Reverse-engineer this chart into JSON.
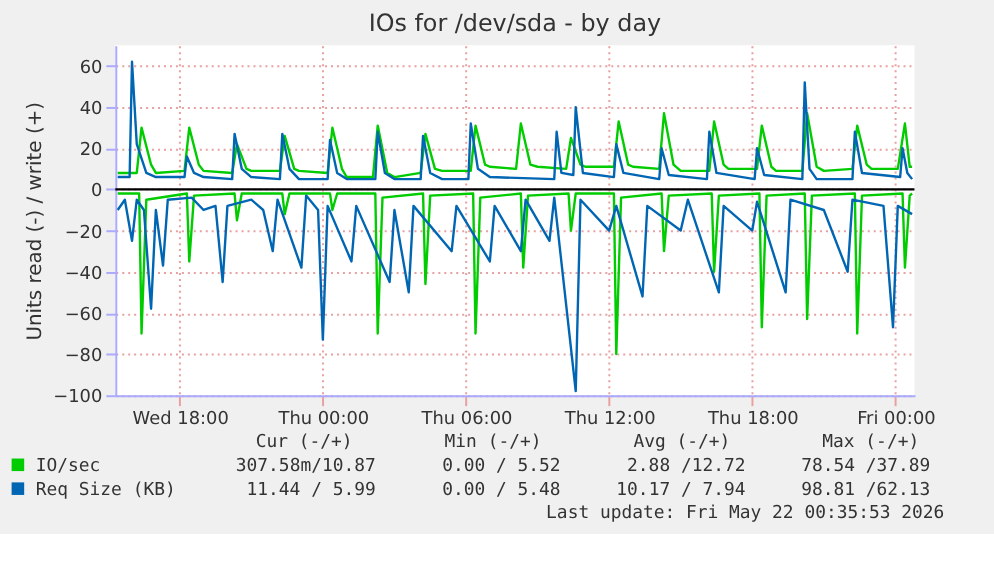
{
  "chart_data": {
    "type": "line",
    "title": "IOs for /dev/sda - by day",
    "ylabel": "Units read (-) / write (+)",
    "xlim": [
      "2026-05-20T15:18",
      "2026-05-22T00:48"
    ],
    "ylim": [
      -100,
      70
    ],
    "xticks": [
      {
        "value": "2026-05-20T18:00",
        "label": "Wed 18:00"
      },
      {
        "value": "2026-05-21T00:00",
        "label": "Thu 00:00"
      },
      {
        "value": "2026-05-21T06:00",
        "label": "Thu 06:00"
      },
      {
        "value": "2026-05-21T12:00",
        "label": "Thu 12:00"
      },
      {
        "value": "2026-05-21T18:00",
        "label": "Thu 18:00"
      },
      {
        "value": "2026-05-22T00:00",
        "label": "Fri 00:00"
      }
    ],
    "yticks": [
      -100,
      -80,
      -60,
      -40,
      -20,
      0,
      20,
      40,
      60
    ],
    "grid": true,
    "legend": "bottom",
    "marker": "none",
    "line_style": "solid",
    "ref_lines": [
      {
        "axis": "y",
        "value": 0,
        "color": "#000000"
      }
    ],
    "series": [
      {
        "name": "IO/sec",
        "color": "#00cc00",
        "x": [
          "2026-05-20T15:24",
          "2026-05-20T16:12",
          "2026-05-20T16:24",
          "2026-05-20T16:48",
          "2026-05-20T17:00",
          "2026-05-20T18:12",
          "2026-05-20T18:24",
          "2026-05-20T18:48",
          "2026-05-20T19:00",
          "2026-05-20T20:12",
          "2026-05-20T20:24",
          "2026-05-20T20:48",
          "2026-05-20T21:00",
          "2026-05-20T22:12",
          "2026-05-20T22:24",
          "2026-05-20T22:48",
          "2026-05-20T23:00",
          "2026-05-21T00:12",
          "2026-05-21T00:24",
          "2026-05-21T00:48",
          "2026-05-21T01:00",
          "2026-05-21T02:06",
          "2026-05-21T02:18",
          "2026-05-21T02:42",
          "2026-05-21T03:00",
          "2026-05-21T04:06",
          "2026-05-21T04:18",
          "2026-05-21T04:42",
          "2026-05-21T05:00",
          "2026-05-21T06:12",
          "2026-05-21T06:24",
          "2026-05-21T06:48",
          "2026-05-21T07:00",
          "2026-05-21T08:06",
          "2026-05-21T08:18",
          "2026-05-21T08:42",
          "2026-05-21T09:00",
          "2026-05-21T10:12",
          "2026-05-21T10:24",
          "2026-05-21T10:48",
          "2026-05-21T11:00",
          "2026-05-21T12:12",
          "2026-05-21T12:24",
          "2026-05-21T12:48",
          "2026-05-21T13:00",
          "2026-05-21T14:06",
          "2026-05-21T14:18",
          "2026-05-21T14:42",
          "2026-05-21T15:00",
          "2026-05-21T16:12",
          "2026-05-21T16:24",
          "2026-05-21T16:48",
          "2026-05-21T17:00",
          "2026-05-21T18:12",
          "2026-05-21T18:24",
          "2026-05-21T18:48",
          "2026-05-21T19:00",
          "2026-05-21T20:06",
          "2026-05-21T20:18",
          "2026-05-21T20:42",
          "2026-05-21T21:00",
          "2026-05-21T22:12",
          "2026-05-21T22:24",
          "2026-05-21T22:48",
          "2026-05-21T23:00",
          "2026-05-22T00:06",
          "2026-05-22T00:24",
          "2026-05-22T00:36",
          "2026-05-22T00:42"
        ],
        "values": [
          8,
          8,
          30,
          12,
          8,
          9,
          30,
          12,
          9,
          8,
          22,
          10,
          9,
          9,
          26,
          10,
          9,
          8,
          30,
          10,
          6,
          6,
          31,
          8,
          6,
          8,
          27,
          10,
          9,
          9,
          31,
          12,
          11,
          10,
          32,
          12,
          11,
          10,
          25,
          12,
          11,
          11,
          33,
          12,
          11,
          10,
          37,
          12,
          9,
          9,
          33,
          12,
          10,
          10,
          31,
          11,
          9,
          9,
          37,
          11,
          9,
          10,
          31,
          12,
          10,
          10,
          32,
          11,
          11
        ]
      },
      {
        "color": "#00cc00",
        "x": [
          "2026-05-20T15:24",
          "2026-05-20T16:18",
          "2026-05-20T16:24",
          "2026-05-20T16:36",
          "2026-05-20T18:18",
          "2026-05-20T18:24",
          "2026-05-20T18:36",
          "2026-05-20T20:18",
          "2026-05-20T20:24",
          "2026-05-20T20:36",
          "2026-05-20T22:18",
          "2026-05-20T22:24",
          "2026-05-20T22:36",
          "2026-05-21T00:18",
          "2026-05-21T00:24",
          "2026-05-21T00:36",
          "2026-05-21T02:12",
          "2026-05-21T02:18",
          "2026-05-21T02:30",
          "2026-05-21T04:12",
          "2026-05-21T04:18",
          "2026-05-21T04:30",
          "2026-05-21T06:18",
          "2026-05-21T06:24",
          "2026-05-21T06:36",
          "2026-05-21T08:18",
          "2026-05-21T08:24",
          "2026-05-21T08:36",
          "2026-05-21T10:18",
          "2026-05-21T10:24",
          "2026-05-21T10:36",
          "2026-05-21T12:12",
          "2026-05-21T12:18",
          "2026-05-21T12:30",
          "2026-05-21T14:12",
          "2026-05-21T14:18",
          "2026-05-21T14:30",
          "2026-05-21T16:18",
          "2026-05-21T16:24",
          "2026-05-21T16:36",
          "2026-05-21T18:18",
          "2026-05-21T18:24",
          "2026-05-21T18:36",
          "2026-05-21T20:12",
          "2026-05-21T20:18",
          "2026-05-21T20:30",
          "2026-05-21T22:18",
          "2026-05-21T22:24",
          "2026-05-21T22:36",
          "2026-05-22T00:18",
          "2026-05-22T00:24",
          "2026-05-22T00:36",
          "2026-05-22T00:42"
        ],
        "values": [
          -2,
          -2,
          -70,
          -5,
          -2,
          -35,
          -3,
          -2,
          -15,
          -2,
          -2,
          -12,
          -2,
          -2,
          -10,
          -2,
          -2,
          -70,
          -4,
          -2,
          -46,
          -3,
          -2,
          -70,
          -4,
          -2,
          -38,
          -3,
          -2,
          -20,
          -2,
          -2,
          -80,
          -4,
          -2,
          -30,
          -3,
          -2,
          -40,
          -3,
          -2,
          -67,
          -3,
          -2,
          -63,
          -3,
          -2,
          -70,
          -3,
          -2,
          -38,
          -3,
          -2
        ]
      },
      {
        "name": "Req Size (KB)",
        "color": "#0066b3",
        "x": [
          "2026-05-20T15:24",
          "2026-05-20T15:54",
          "2026-05-20T16:00",
          "2026-05-20T16:12",
          "2026-05-20T16:36",
          "2026-05-20T17:00",
          "2026-05-20T18:12",
          "2026-05-20T18:18",
          "2026-05-20T18:36",
          "2026-05-20T19:00",
          "2026-05-20T20:12",
          "2026-05-20T20:18",
          "2026-05-20T20:36",
          "2026-05-20T21:00",
          "2026-05-20T22:12",
          "2026-05-20T22:18",
          "2026-05-20T22:36",
          "2026-05-20T23:00",
          "2026-05-21T00:12",
          "2026-05-21T00:18",
          "2026-05-21T00:36",
          "2026-05-21T01:00",
          "2026-05-21T02:12",
          "2026-05-21T02:18",
          "2026-05-21T02:36",
          "2026-05-21T03:00",
          "2026-05-21T04:06",
          "2026-05-21T04:12",
          "2026-05-21T04:30",
          "2026-05-21T05:00",
          "2026-05-21T06:06",
          "2026-05-21T06:12",
          "2026-05-21T06:30",
          "2026-05-21T07:00",
          "2026-05-21T09:42",
          "2026-05-21T09:48",
          "2026-05-21T10:00",
          "2026-05-21T10:30",
          "2026-05-21T10:36",
          "2026-05-21T10:54",
          "2026-05-21T12:12",
          "2026-05-21T12:18",
          "2026-05-21T12:36",
          "2026-05-21T14:06",
          "2026-05-21T14:12",
          "2026-05-21T14:30",
          "2026-05-21T16:06",
          "2026-05-21T16:12",
          "2026-05-21T16:30",
          "2026-05-21T18:06",
          "2026-05-21T18:12",
          "2026-05-21T18:30",
          "2026-05-21T20:06",
          "2026-05-21T20:12",
          "2026-05-21T20:24",
          "2026-05-21T20:42",
          "2026-05-21T22:12",
          "2026-05-21T22:18",
          "2026-05-21T22:36",
          "2026-05-22T00:12",
          "2026-05-22T00:18",
          "2026-05-22T00:30",
          "2026-05-22T00:42"
        ],
        "values": [
          6,
          6,
          62,
          22,
          8,
          6,
          6,
          16,
          8,
          6,
          5,
          27,
          10,
          6,
          5,
          27,
          10,
          5,
          5,
          24,
          8,
          5,
          5,
          28,
          8,
          5,
          5,
          26,
          8,
          5,
          5,
          32,
          10,
          6,
          5,
          28,
          8,
          7,
          40,
          8,
          6,
          22,
          8,
          5,
          20,
          7,
          5,
          28,
          8,
          5,
          20,
          7,
          5,
          52,
          10,
          5,
          5,
          28,
          8,
          6,
          20,
          8,
          5
        ]
      },
      {
        "color": "#0066b3",
        "x": [
          "2026-05-20T15:24",
          "2026-05-20T15:42",
          "2026-05-20T16:00",
          "2026-05-20T16:12",
          "2026-05-20T16:30",
          "2026-05-20T16:48",
          "2026-05-20T17:00",
          "2026-05-20T17:18",
          "2026-05-20T17:30",
          "2026-05-20T18:30",
          "2026-05-20T19:00",
          "2026-05-20T19:30",
          "2026-05-20T19:48",
          "2026-05-20T20:00",
          "2026-05-20T21:00",
          "2026-05-20T21:30",
          "2026-05-20T21:54",
          "2026-05-20T22:06",
          "2026-05-20T23:06",
          "2026-05-20T23:18",
          "2026-05-20T23:48",
          "2026-05-21T00:00",
          "2026-05-21T00:12",
          "2026-05-21T01:12",
          "2026-05-21T01:24",
          "2026-05-21T02:48",
          "2026-05-21T03:00",
          "2026-05-21T03:36",
          "2026-05-21T03:48",
          "2026-05-21T05:24",
          "2026-05-21T05:36",
          "2026-05-21T07:00",
          "2026-05-21T07:12",
          "2026-05-21T08:18",
          "2026-05-21T08:30",
          "2026-05-21T09:30",
          "2026-05-21T09:42",
          "2026-05-21T10:36",
          "2026-05-21T10:48",
          "2026-05-21T12:00",
          "2026-05-21T12:18",
          "2026-05-21T13:24",
          "2026-05-21T13:36",
          "2026-05-21T15:00",
          "2026-05-21T15:18",
          "2026-05-21T16:36",
          "2026-05-21T16:48",
          "2026-05-21T18:00",
          "2026-05-21T18:12",
          "2026-05-21T19:24",
          "2026-05-21T19:36",
          "2026-05-21T21:00",
          "2026-05-21T22:00",
          "2026-05-21T22:12",
          "2026-05-21T23:30",
          "2026-05-21T23:54",
          "2026-05-22T00:06",
          "2026-05-22T00:42"
        ],
        "values": [
          -10,
          -5,
          -25,
          -5,
          -10,
          -58,
          -10,
          -37,
          -5,
          -4,
          -10,
          -8,
          -45,
          -8,
          -5,
          -10,
          -30,
          -5,
          -38,
          -3,
          -10,
          -73,
          -8,
          -35,
          -8,
          -45,
          -10,
          -50,
          -8,
          -30,
          -8,
          -35,
          -8,
          -30,
          -5,
          -25,
          -4,
          -98,
          -5,
          -20,
          -8,
          -52,
          -8,
          -20,
          -5,
          -50,
          -8,
          -20,
          -6,
          -50,
          -5,
          -10,
          -40,
          -5,
          -8,
          -67,
          -8,
          -12
        ]
      }
    ],
    "annotations": [
      "Cur (-/+)",
      "Min (-/+)",
      "Avg (-/+)",
      "Max (-/+)",
      "307.58m/10.87",
      "0.00 / 5.52",
      "2.88 /12.72",
      "78.54 /37.89",
      "11.44 / 5.99",
      "0.00 / 5.48",
      "10.17 / 7.94",
      "98.81 /62.13",
      "Last update: Fri May 22 00:35:53 2026"
    ]
  }
}
